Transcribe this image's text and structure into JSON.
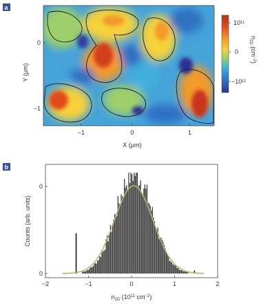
{
  "panel_a": {
    "letter": "a",
    "xlabel": "X (μm)",
    "ylabel": "Y (μm)",
    "x_ticks": [
      "−1",
      "0",
      "1"
    ],
    "y_ticks": [
      "0",
      "−1"
    ],
    "colorbar": {
      "label": "n2D (cm−2)",
      "label_main": "n",
      "label_sub": "2D",
      "label_unit": " (cm",
      "label_exp": "−2",
      "label_close": ")",
      "ticks": [
        "10¹¹",
        "0",
        "−10¹¹"
      ],
      "colors": [
        "#b5341e",
        "#e24a1e",
        "#f29a2b",
        "#f6d23a",
        "#9fcf6b",
        "#3fb0dd",
        "#2e6fc2",
        "#2e2f8f"
      ]
    }
  },
  "panel_b": {
    "letter": "b",
    "xlabel_main": "n",
    "xlabel_sub": "2D",
    "xlabel_rest": " (10",
    "xlabel_exp": "11",
    "xlabel_unit": " cm",
    "xlabel_exp2": "−2",
    "xlabel_close": ")",
    "ylabel": "Counts (arb. units)",
    "y_ticks": [
      "0",
      "0"
    ]
  },
  "chart_data": {
    "type": "bar",
    "xlim": [
      -2,
      2
    ],
    "x_ticks": [
      "−2",
      "−1",
      "0",
      "1",
      "2"
    ],
    "histogram": {
      "bin_width": 0.025,
      "mean": 0.05,
      "sigma": 0.42,
      "outliers": [
        {
          "x": -1.3,
          "count": 0.4
        },
        {
          "x": 1.45,
          "count": 0.03
        }
      ]
    },
    "gaussian_fit": {
      "mean": 0.05,
      "sigma": 0.45,
      "peak": 0.87,
      "color": "#b5b56a"
    }
  }
}
